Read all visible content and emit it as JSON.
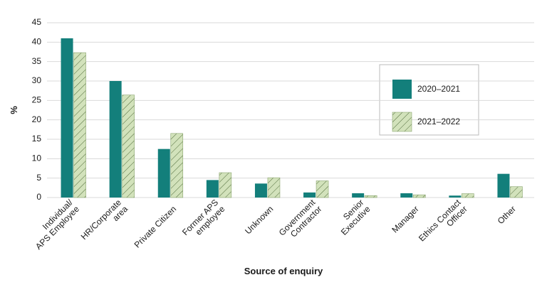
{
  "chart_data": {
    "type": "bar",
    "y_label": "%",
    "x_label": "Source of enquiry",
    "categories": [
      "Individual/\nAPS Employee",
      "HR/Corporate\narea",
      "Private Citizen",
      "Former APS\nemployee",
      "Unknown",
      "Government\nContractor",
      "Senior\nExecutive",
      "Manager",
      "Ethics Contact\nOfficer",
      "Other"
    ],
    "series": [
      {
        "name": "2020–2021",
        "color": "#137f7b",
        "hatch": false,
        "values": [
          41,
          30,
          12.5,
          4.5,
          3.6,
          1.3,
          1.1,
          1.1,
          0.5,
          6.1
        ]
      },
      {
        "name": "2021–2022",
        "color": "#d2e2bb",
        "hatch": true,
        "values": [
          37.3,
          26.4,
          16.5,
          6.4,
          5.1,
          4.3,
          0.5,
          0.7,
          1.0,
          2.8
        ]
      }
    ],
    "ylim": [
      0,
      45
    ],
    "yticks": [
      0,
      5,
      10,
      15,
      20,
      25,
      30,
      35,
      40,
      45
    ],
    "grid": true
  }
}
